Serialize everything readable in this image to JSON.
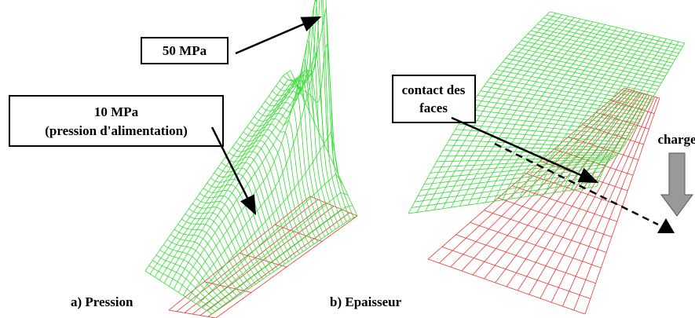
{
  "labels": {
    "left_top": "50 MPa",
    "left_mid": [
      "10 MPa",
      "(pression d'alimentation)"
    ],
    "right_box": [
      "contact des",
      "faces"
    ],
    "load": "charge"
  },
  "captions": {
    "a": "a) Pression",
    "b": "b) Epaisseur"
  }
}
